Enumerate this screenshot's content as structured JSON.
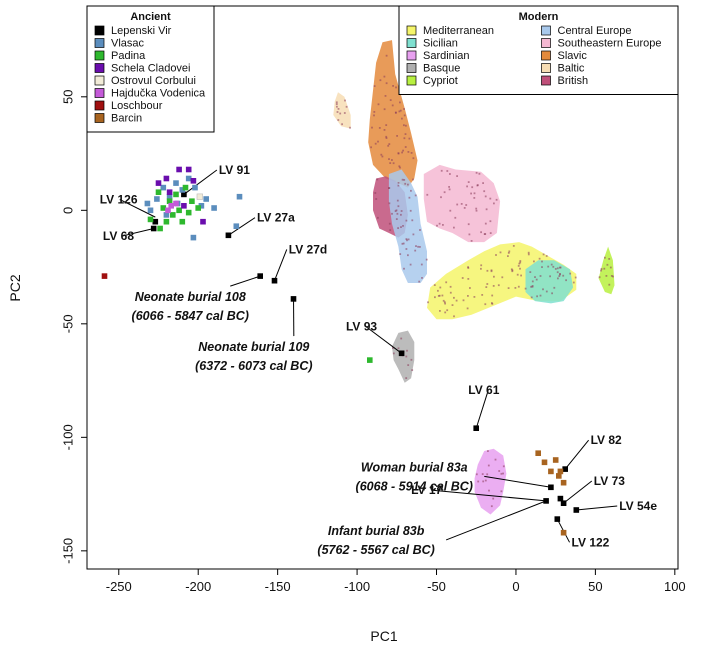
{
  "chart_data": {
    "type": "scatter",
    "xlabel": "PC1",
    "ylabel": "PC2",
    "xlim": [
      -270,
      102
    ],
    "ylim": [
      -158,
      90
    ],
    "xticks": [
      -250,
      -200,
      -150,
      -100,
      -50,
      0,
      50,
      100
    ],
    "yticks": [
      50,
      0,
      -50,
      -100,
      -150
    ],
    "legend_ancient": {
      "title": "Ancient",
      "placement": "top-left",
      "entries": [
        {
          "name": "Lepenski Vir",
          "color": "#000000"
        },
        {
          "name": "Vlasac",
          "color": "#5b8dbd"
        },
        {
          "name": "Padina",
          "color": "#2eb82e"
        },
        {
          "name": "Schela Cladovei",
          "color": "#6a0dad"
        },
        {
          "name": "Ostrovul Corbului",
          "color": "#f2ecd8"
        },
        {
          "name": "Hajdučka Vodenica",
          "color": "#c45ad8"
        },
        {
          "name": "Loschbour",
          "color": "#a01010"
        },
        {
          "name": "Barcin",
          "color": "#a86420"
        }
      ]
    },
    "legend_modern": {
      "title": "Modern",
      "placement": "top-right",
      "entries": [
        {
          "name": "Mediterranean",
          "color": "#f5f56a"
        },
        {
          "name": "Central Europe",
          "color": "#a9c9ec"
        },
        {
          "name": "Sicilian",
          "color": "#7fe0d0"
        },
        {
          "name": "Southeastern Europe",
          "color": "#f5b8d2"
        },
        {
          "name": "Sardinian",
          "color": "#e8a0f0"
        },
        {
          "name": "Slavic",
          "color": "#e48a3c"
        },
        {
          "name": "Basque",
          "color": "#b0b0b0"
        },
        {
          "name": "Baltic",
          "color": "#f7ddb4"
        },
        {
          "name": "Cypriot",
          "color": "#b8f040"
        },
        {
          "name": "British",
          "color": "#c0507a"
        }
      ]
    },
    "annotations": [
      {
        "text": "LV 91",
        "x": -187,
        "y": 16
      },
      {
        "text": "LV 126",
        "x": -262,
        "y": 3
      },
      {
        "text": "LV 68",
        "x": -260,
        "y": -13
      },
      {
        "text": "LV 27a",
        "x": -163,
        "y": -5
      },
      {
        "text": "LV 27d",
        "x": -143,
        "y": -19
      },
      {
        "text": "LV 93",
        "x": -107,
        "y": -53
      },
      {
        "text": "LV 61",
        "x": -30,
        "y": -81
      },
      {
        "text": "LV 82",
        "x": 47,
        "y": -103
      },
      {
        "text": "LV 17",
        "x": -66,
        "y": -125
      },
      {
        "text": "LV 73",
        "x": 49,
        "y": -121
      },
      {
        "text": "LV 54e",
        "x": 65,
        "y": -132
      },
      {
        "text": "LV 122",
        "x": 35,
        "y": -148
      }
    ],
    "burial_labels": [
      {
        "lines": [
          "Neonate burial 108",
          "(6066 - 5847 cal BC)"
        ],
        "x": -205,
        "y": -40
      },
      {
        "lines": [
          "Neonate burial 109",
          "(6372 - 6073 cal BC)"
        ],
        "x": -165,
        "y": -62
      },
      {
        "lines": [
          "Woman burial 83a",
          "(6068 - 5914 cal BC)"
        ],
        "x": -64,
        "y": -115
      },
      {
        "lines": [
          "Infant burial 83b",
          "(5762 - 5567 cal BC)"
        ],
        "x": -88,
        "y": -143
      }
    ],
    "ancient_points": [
      {
        "group": "Lepenski Vir",
        "x": -209,
        "y": 7
      },
      {
        "group": "Lepenski Vir",
        "x": -227,
        "y": -5
      },
      {
        "group": "Lepenski Vir",
        "x": -228,
        "y": -8
      },
      {
        "group": "Lepenski Vir",
        "x": -181,
        "y": -11
      },
      {
        "group": "Lepenski Vir",
        "x": -152,
        "y": -31
      },
      {
        "group": "Lepenski Vir",
        "x": -161,
        "y": -29
      },
      {
        "group": "Lepenski Vir",
        "x": -140,
        "y": -39
      },
      {
        "group": "Lepenski Vir",
        "x": -72,
        "y": -63
      },
      {
        "group": "Lepenski Vir",
        "x": -25,
        "y": -96
      },
      {
        "group": "Lepenski Vir",
        "x": 31,
        "y": -114
      },
      {
        "group": "Lepenski Vir",
        "x": 22,
        "y": -122
      },
      {
        "group": "Lepenski Vir",
        "x": 19,
        "y": -128
      },
      {
        "group": "Lepenski Vir",
        "x": 28,
        "y": -127
      },
      {
        "group": "Lepenski Vir",
        "x": 30,
        "y": -129
      },
      {
        "group": "Lepenski Vir",
        "x": 38,
        "y": -132
      },
      {
        "group": "Lepenski Vir",
        "x": 26,
        "y": -136
      },
      {
        "group": "Vlasac",
        "x": -232,
        "y": 3
      },
      {
        "group": "Vlasac",
        "x": -230,
        "y": 0
      },
      {
        "group": "Vlasac",
        "x": -226,
        "y": 5
      },
      {
        "group": "Vlasac",
        "x": -222,
        "y": 10
      },
      {
        "group": "Vlasac",
        "x": -218,
        "y": 6
      },
      {
        "group": "Vlasac",
        "x": -214,
        "y": 12
      },
      {
        "group": "Vlasac",
        "x": -210,
        "y": 9
      },
      {
        "group": "Vlasac",
        "x": -206,
        "y": 14
      },
      {
        "group": "Vlasac",
        "x": -202,
        "y": 10
      },
      {
        "group": "Vlasac",
        "x": -198,
        "y": 2
      },
      {
        "group": "Vlasac",
        "x": -195,
        "y": 5
      },
      {
        "group": "Vlasac",
        "x": -190,
        "y": 1
      },
      {
        "group": "Vlasac",
        "x": -176,
        "y": -7
      },
      {
        "group": "Vlasac",
        "x": -174,
        "y": 6
      },
      {
        "group": "Vlasac",
        "x": -220,
        "y": -2
      },
      {
        "group": "Vlasac",
        "x": -203,
        "y": -12
      },
      {
        "group": "Vlasac",
        "x": -213,
        "y": 3
      },
      {
        "group": "Padina",
        "x": -230,
        "y": -4
      },
      {
        "group": "Padina",
        "x": -224,
        "y": -8
      },
      {
        "group": "Padina",
        "x": -220,
        "y": -5
      },
      {
        "group": "Padina",
        "x": -216,
        "y": -2
      },
      {
        "group": "Padina",
        "x": -212,
        "y": 0
      },
      {
        "group": "Padina",
        "x": -218,
        "y": 4
      },
      {
        "group": "Padina",
        "x": -210,
        "y": -5
      },
      {
        "group": "Padina",
        "x": -206,
        "y": -1
      },
      {
        "group": "Padina",
        "x": -204,
        "y": 4
      },
      {
        "group": "Padina",
        "x": -214,
        "y": 7
      },
      {
        "group": "Padina",
        "x": -222,
        "y": 1
      },
      {
        "group": "Padina",
        "x": -200,
        "y": 1
      },
      {
        "group": "Padina",
        "x": -225,
        "y": 8
      },
      {
        "group": "Padina",
        "x": -208,
        "y": 10
      },
      {
        "group": "Padina",
        "x": -92,
        "y": -66
      },
      {
        "group": "Schela Cladovei",
        "x": -220,
        "y": 14
      },
      {
        "group": "Schela Cladovei",
        "x": -212,
        "y": 18
      },
      {
        "group": "Schela Cladovei",
        "x": -206,
        "y": 18
      },
      {
        "group": "Schela Cladovei",
        "x": -203,
        "y": 13
      },
      {
        "group": "Schela Cladovei",
        "x": -218,
        "y": 8
      },
      {
        "group": "Schela Cladovei",
        "x": -225,
        "y": 12
      },
      {
        "group": "Schela Cladovei",
        "x": -197,
        "y": -5
      },
      {
        "group": "Schela Cladovei",
        "x": -209,
        "y": 2
      },
      {
        "group": "Ostrovul Corbului",
        "x": -199,
        "y": 6
      },
      {
        "group": "Hajdučka Vodenica",
        "x": -214,
        "y": 3
      },
      {
        "group": "Hajdučka Vodenica",
        "x": -217,
        "y": 2
      },
      {
        "group": "Hajdučka Vodenica",
        "x": -219,
        "y": 0
      },
      {
        "group": "Loschbour",
        "x": -259,
        "y": -29
      },
      {
        "group": "Barcin",
        "x": 14,
        "y": -107
      },
      {
        "group": "Barcin",
        "x": 18,
        "y": -111
      },
      {
        "group": "Barcin",
        "x": 22,
        "y": -115
      },
      {
        "group": "Barcin",
        "x": 25,
        "y": -110
      },
      {
        "group": "Barcin",
        "x": 28,
        "y": -115
      },
      {
        "group": "Barcin",
        "x": 27,
        "y": -117
      },
      {
        "group": "Barcin",
        "x": 30,
        "y": -120
      },
      {
        "group": "Barcin",
        "x": 30,
        "y": -142
      }
    ],
    "modern_clusters": [
      {
        "group": "Slavic",
        "poly": [
          [
            -92,
            40
          ],
          [
            -88,
            65
          ],
          [
            -84,
            74
          ],
          [
            -78,
            75
          ],
          [
            -76,
            60
          ],
          [
            -70,
            45
          ],
          [
            -66,
            34
          ],
          [
            -62,
            22
          ],
          [
            -64,
            14
          ],
          [
            -68,
            10
          ],
          [
            -74,
            12
          ],
          [
            -82,
            14
          ],
          [
            -90,
            20
          ],
          [
            -93,
            30
          ]
        ]
      },
      {
        "group": "Baltic",
        "poly": [
          [
            -114,
            48
          ],
          [
            -112,
            52
          ],
          [
            -108,
            50
          ],
          [
            -104,
            42
          ],
          [
            -104,
            36
          ],
          [
            -110,
            37
          ],
          [
            -115,
            42
          ]
        ]
      },
      {
        "group": "Southeastern Europe",
        "poly": [
          [
            -58,
            16
          ],
          [
            -48,
            20
          ],
          [
            -38,
            18
          ],
          [
            -22,
            17
          ],
          [
            -14,
            12
          ],
          [
            -10,
            4
          ],
          [
            -12,
            -10
          ],
          [
            -20,
            -14
          ],
          [
            -30,
            -14
          ],
          [
            -40,
            -10
          ],
          [
            -48,
            -8
          ],
          [
            -56,
            -5
          ],
          [
            -58,
            5
          ]
        ]
      },
      {
        "group": "British",
        "poly": [
          [
            -88,
            14
          ],
          [
            -82,
            15
          ],
          [
            -76,
            13
          ],
          [
            -70,
            8
          ],
          [
            -68,
            -2
          ],
          [
            -70,
            -10
          ],
          [
            -74,
            -12
          ],
          [
            -80,
            -10
          ],
          [
            -86,
            -8
          ],
          [
            -90,
            0
          ],
          [
            -90,
            8
          ]
        ]
      },
      {
        "group": "Central Europe",
        "poly": [
          [
            -80,
            16
          ],
          [
            -72,
            18
          ],
          [
            -66,
            12
          ],
          [
            -62,
            6
          ],
          [
            -60,
            -6
          ],
          [
            -56,
            -18
          ],
          [
            -56,
            -28
          ],
          [
            -60,
            -32
          ],
          [
            -68,
            -32
          ],
          [
            -72,
            -26
          ],
          [
            -74,
            -16
          ],
          [
            -78,
            -6
          ],
          [
            -80,
            4
          ]
        ]
      },
      {
        "group": "Mediterranean",
        "poly": [
          [
            -54,
            -34
          ],
          [
            -44,
            -28
          ],
          [
            -30,
            -22
          ],
          [
            -20,
            -18
          ],
          [
            -10,
            -15
          ],
          [
            2,
            -14
          ],
          [
            10,
            -16
          ],
          [
            20,
            -20
          ],
          [
            30,
            -24
          ],
          [
            38,
            -28
          ],
          [
            38,
            -35
          ],
          [
            28,
            -40
          ],
          [
            14,
            -40
          ],
          [
            0,
            -38
          ],
          [
            -14,
            -42
          ],
          [
            -28,
            -46
          ],
          [
            -40,
            -48
          ],
          [
            -50,
            -48
          ],
          [
            -56,
            -43
          ]
        ]
      },
      {
        "group": "Sicilian",
        "poly": [
          [
            6,
            -26
          ],
          [
            14,
            -22
          ],
          [
            24,
            -22
          ],
          [
            34,
            -26
          ],
          [
            36,
            -34
          ],
          [
            30,
            -40
          ],
          [
            22,
            -41
          ],
          [
            12,
            -40
          ],
          [
            6,
            -36
          ]
        ]
      },
      {
        "group": "Cypriot",
        "poly": [
          [
            52,
            -30
          ],
          [
            55,
            -22
          ],
          [
            58,
            -16
          ],
          [
            61,
            -22
          ],
          [
            62,
            -33
          ],
          [
            60,
            -37
          ],
          [
            56,
            -36
          ]
        ]
      },
      {
        "group": "Basque",
        "poly": [
          [
            -78,
            -60
          ],
          [
            -74,
            -54
          ],
          [
            -68,
            -53
          ],
          [
            -64,
            -58
          ],
          [
            -64,
            -66
          ],
          [
            -66,
            -74
          ],
          [
            -70,
            -76
          ],
          [
            -74,
            -70
          ],
          [
            -77,
            -66
          ]
        ]
      },
      {
        "group": "Sardinian",
        "poly": [
          [
            -24,
            -112
          ],
          [
            -20,
            -106
          ],
          [
            -14,
            -105
          ],
          [
            -8,
            -108
          ],
          [
            -6,
            -116
          ],
          [
            -8,
            -124
          ],
          [
            -10,
            -130
          ],
          [
            -16,
            -134
          ],
          [
            -22,
            -131
          ],
          [
            -26,
            -124
          ],
          [
            -26,
            -118
          ]
        ]
      }
    ]
  }
}
